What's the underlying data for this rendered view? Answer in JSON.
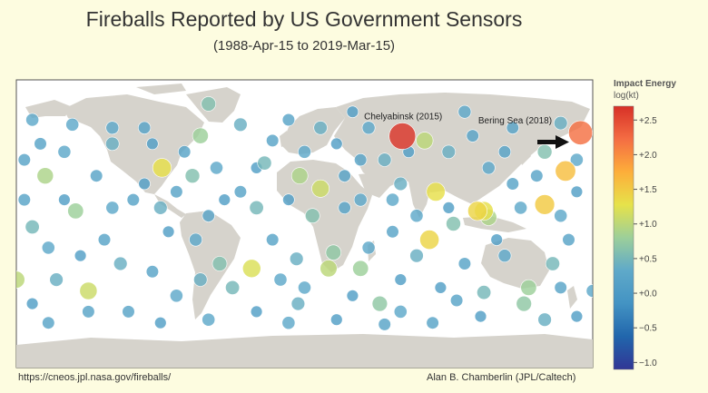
{
  "chart_data": {
    "type": "scatter",
    "title": "Fireballs Reported by US Government Sensors",
    "subtitle": "(1988-Apr-15 to 2019-Mar-15)",
    "xlim": [
      -180,
      180
    ],
    "ylim": [
      -90,
      90
    ],
    "colorbar": {
      "title": "Impact Energy",
      "subtitle": "log(kt)",
      "range": [
        -1.1,
        2.7
      ],
      "ticks": [
        "+2.5",
        "+2.0",
        "+1.5",
        "+1.0",
        "+0.5",
        "+0.0",
        "−0.5",
        "−1.0"
      ],
      "tick_values": [
        2.5,
        2.0,
        1.5,
        1.0,
        0.5,
        0.0,
        -0.5,
        -1.0
      ],
      "colors": [
        "#313695",
        "#2166ac",
        "#4393c3",
        "#5fa9c9",
        "#9ccf9a",
        "#e6e24a",
        "#fdae3a",
        "#f46d43",
        "#d73027"
      ]
    },
    "annotations": [
      {
        "text": "Chelyabinsk (2015)",
        "lon": 61,
        "lat": 55
      },
      {
        "text": "Bering Sea (2018)",
        "lon": 172,
        "lat": 57
      }
    ],
    "points": [
      [
        61.1,
        54.8,
        2.65
      ],
      [
        172.4,
        56.9,
        2.2
      ],
      [
        75,
        52,
        1.0
      ],
      [
        -65,
        55,
        0.8
      ],
      [
        163,
        33,
        1.6
      ],
      [
        150,
        12,
        1.5
      ],
      [
        -162,
        30,
        0.9
      ],
      [
        -89,
        35,
        1.3
      ],
      [
        -70,
        30,
        0.6
      ],
      [
        -143,
        8,
        0.8
      ],
      [
        -107,
        15,
        0.2
      ],
      [
        -170,
        -2,
        0.5
      ],
      [
        -180,
        -35,
        1.0
      ],
      [
        -135,
        -42,
        1.1
      ],
      [
        -68,
        -10,
        0.3
      ],
      [
        -53,
        -25,
        0.6
      ],
      [
        -33,
        -28,
        1.2
      ],
      [
        -5,
        -22,
        0.4
      ],
      [
        15,
        -28,
        1.0
      ],
      [
        18,
        -18,
        0.7
      ],
      [
        35,
        -28,
        0.8
      ],
      [
        -3,
        30,
        0.9
      ],
      [
        10,
        22,
        1.1
      ],
      [
        5,
        5,
        0.6
      ],
      [
        35,
        15,
        0.3
      ],
      [
        93,
        0,
        0.6
      ],
      [
        82,
        20,
        1.3
      ],
      [
        108,
        8,
        1.4
      ],
      [
        112,
        8,
        1.3
      ],
      [
        115,
        4,
        0.9
      ],
      [
        78,
        -10,
        1.4
      ],
      [
        112,
        -43,
        0.5
      ],
      [
        137,
        -50,
        0.7
      ],
      [
        140,
        -40,
        0.8
      ],
      [
        180,
        -42,
        0.3
      ],
      [
        47,
        -50,
        0.7
      ],
      [
        -4,
        -50,
        0.4
      ],
      [
        95,
        -48,
        0.2
      ],
      [
        60,
        -35,
        0.1
      ],
      [
        -25,
        38,
        0.5
      ],
      [
        -150,
        45,
        0.3
      ],
      [
        -120,
        50,
        0.4
      ],
      [
        -100,
        60,
        0.2
      ],
      [
        -40,
        62,
        0.4
      ],
      [
        -20,
        52,
        0.2
      ],
      [
        20,
        50,
        0.1
      ],
      [
        40,
        60,
        0.3
      ],
      [
        90,
        45,
        0.4
      ],
      [
        130,
        60,
        0.2
      ],
      [
        150,
        45,
        0.6
      ],
      [
        160,
        63,
        0.4
      ],
      [
        -170,
        65,
        0.3
      ],
      [
        -10,
        65,
        0.2
      ],
      [
        30,
        70,
        0.1
      ],
      [
        100,
        70,
        0.3
      ],
      [
        -130,
        30,
        0.2
      ],
      [
        -150,
        15,
        0.1
      ],
      [
        -120,
        10,
        0.3
      ],
      [
        -90,
        10,
        0.4
      ],
      [
        -60,
        5,
        0.2
      ],
      [
        -30,
        10,
        0.5
      ],
      [
        -10,
        15,
        0.1
      ],
      [
        25,
        30,
        0.2
      ],
      [
        60,
        25,
        0.4
      ],
      [
        70,
        5,
        0.3
      ],
      [
        130,
        25,
        0.2
      ],
      [
        170,
        20,
        0.1
      ],
      [
        -175,
        15,
        0.2
      ],
      [
        -160,
        -15,
        0.3
      ],
      [
        -140,
        -20,
        0.1
      ],
      [
        -115,
        -25,
        0.4
      ],
      [
        -95,
        -30,
        0.2
      ],
      [
        -80,
        -45,
        0.3
      ],
      [
        -45,
        -40,
        0.5
      ],
      [
        -20,
        -10,
        0.2
      ],
      [
        0,
        -40,
        0.3
      ],
      [
        30,
        -45,
        0.1
      ],
      [
        70,
        -20,
        0.4
      ],
      [
        100,
        -25,
        0.2
      ],
      [
        125,
        -20,
        0.3
      ],
      [
        155,
        -25,
        0.5
      ],
      [
        165,
        -10,
        0.2
      ],
      [
        -170,
        -50,
        0.1
      ],
      [
        -110,
        -55,
        0.2
      ],
      [
        -60,
        -60,
        0.3
      ],
      [
        20,
        -60,
        0.1
      ],
      [
        80,
        -62,
        0.2
      ],
      [
        150,
        -60,
        0.4
      ],
      [
        -175,
        40,
        0.2
      ],
      [
        170,
        40,
        0.3
      ],
      [
        -60,
        75,
        0.6
      ],
      [
        -30,
        35,
        0.1
      ],
      [
        -145,
        62,
        0.3
      ],
      [
        25,
        10,
        0.2
      ],
      [
        50,
        40,
        0.4
      ],
      [
        115,
        35,
        0.3
      ],
      [
        125,
        45,
        0.2
      ],
      [
        -85,
        -5,
        0.1
      ],
      [
        -15,
        -35,
        0.3
      ],
      [
        55,
        -5,
        0.2
      ],
      [
        85,
        -40,
        0.1
      ],
      [
        135,
        10,
        0.3
      ],
      [
        145,
        30,
        0.2
      ],
      [
        -155,
        -35,
        0.4
      ],
      [
        -125,
        -10,
        0.2
      ],
      [
        -100,
        25,
        0.1
      ],
      [
        -75,
        45,
        0.2
      ],
      [
        0,
        45,
        0.3
      ],
      [
        65,
        45,
        0.1
      ],
      [
        105,
        55,
        0.2
      ],
      [
        -165,
        50,
        0.2
      ],
      [
        10,
        60,
        0.4
      ],
      [
        -50,
        15,
        0.1
      ],
      [
        40,
        -15,
        0.3
      ],
      [
        120,
        -10,
        0.1
      ],
      [
        160,
        5,
        0.3
      ],
      [
        -135,
        -55,
        0.2
      ],
      [
        -30,
        -55,
        0.1
      ],
      [
        60,
        -55,
        0.3
      ],
      [
        110,
        -58,
        0.1
      ],
      [
        -160,
        -62,
        0.2
      ],
      [
        -90,
        -62,
        0.1
      ],
      [
        -10,
        -62,
        0.3
      ],
      [
        50,
        -63,
        0.2
      ],
      [
        170,
        -58,
        0.1
      ],
      [
        -55,
        35,
        0.3
      ],
      [
        -40,
        20,
        0.2
      ],
      [
        -65,
        -35,
        0.4
      ],
      [
        35,
        40,
        0.2
      ],
      [
        55,
        15,
        0.3
      ],
      [
        90,
        10,
        0.1
      ],
      [
        160,
        -40,
        0.2
      ],
      [
        -120,
        60,
        0.3
      ],
      [
        -95,
        50,
        0.1
      ],
      [
        -80,
        20,
        0.2
      ]
    ]
  }
}
